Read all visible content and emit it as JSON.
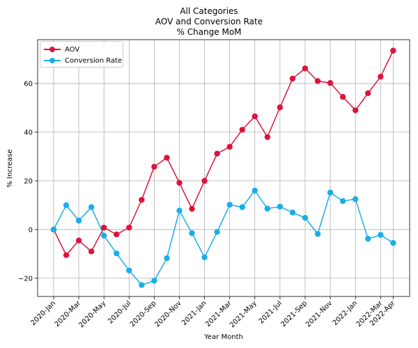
{
  "chart_data": {
    "type": "line",
    "title": [
      "All Categories",
      "AOV and Conversion Rate",
      "% Change MoM"
    ],
    "xlabel": "Year Month",
    "ylabel": "% Increase",
    "categories": [
      "2020-Jan",
      "2020-Feb",
      "2020-Mar",
      "2020-Apr",
      "2020-May",
      "2020-Jun",
      "2020-Jul",
      "2020-Aug",
      "2020-Sep",
      "2020-Oct",
      "2020-Nov",
      "2020-Dec",
      "2021-Jan",
      "2021-Feb",
      "2021-Mar",
      "2021-Apr",
      "2021-May",
      "2021-Jun",
      "2021-Jul",
      "2021-Aug",
      "2021-Sep",
      "2021-Oct",
      "2021-Nov",
      "2021-Dec",
      "2022-Jan",
      "2022-Feb",
      "2022-Mar",
      "2022-Apr"
    ],
    "x_tick_labels": [
      "2020-Jan",
      "2020-Mar",
      "2020-May",
      "2020-Jul",
      "2020-Sep",
      "2020-Nov",
      "2021-Jan",
      "2021-Mar",
      "2021-May",
      "2021-Jul",
      "2021-Sep",
      "2021-Nov",
      "2022-Jan",
      "2022-Mar",
      "2022-Apr"
    ],
    "y_ticks": [
      -20,
      0,
      20,
      40,
      60
    ],
    "ylim": [
      -27.5,
      78
    ],
    "grid": true,
    "legend_position": "top-left",
    "series": [
      {
        "name": "AOV",
        "color": "#dc143c",
        "values": [
          0,
          -10.5,
          -4.5,
          -9,
          0.8,
          -2,
          0.8,
          12.2,
          25.8,
          29.5,
          19.2,
          8.5,
          20,
          31.2,
          34,
          41,
          46.5,
          38,
          50.2,
          62,
          66.2,
          61,
          60.2,
          54.5,
          49,
          56,
          62.8,
          73.5
        ]
      },
      {
        "name": "Conversion Rate",
        "color": "#1aaee8",
        "values": [
          0,
          10,
          3.7,
          9.2,
          -2.5,
          -9.8,
          -16.8,
          -22.8,
          -21,
          -11.8,
          7.8,
          -1.5,
          -11.4,
          -1,
          10.2,
          9.2,
          16,
          8.6,
          9.4,
          7,
          4.8,
          -1.8,
          15.2,
          11.7,
          12.5,
          -3.8,
          -2.2,
          -5.5
        ]
      }
    ]
  }
}
